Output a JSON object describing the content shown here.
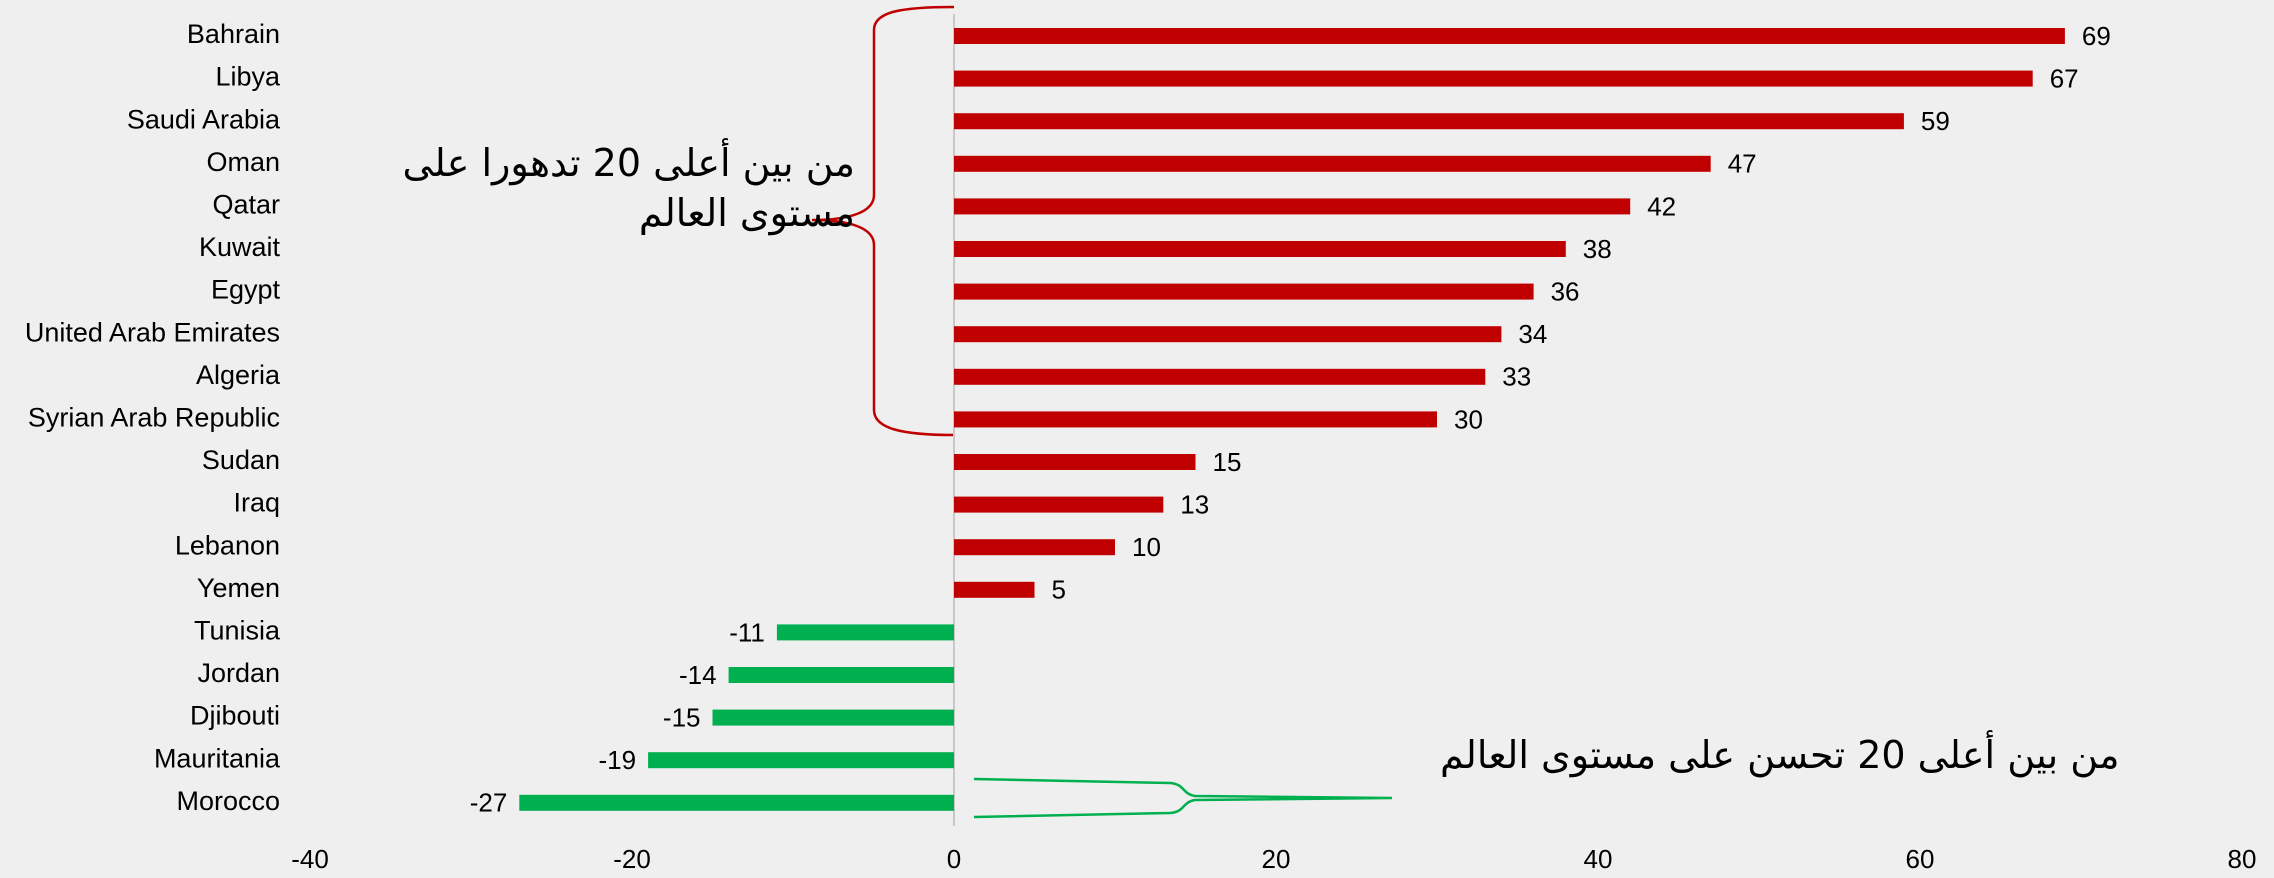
{
  "chart_data": {
    "type": "bar",
    "orientation": "horizontal",
    "categories": [
      "Bahrain",
      "Libya",
      "Saudi Arabia",
      "Oman",
      "Qatar",
      "Kuwait",
      "Egypt",
      "United Arab Emirates",
      "Algeria",
      "Syrian Arab Republic",
      "Sudan",
      "Iraq",
      "Lebanon",
      "Yemen",
      "Tunisia",
      "Jordan",
      "Djibouti",
      "Mauritania",
      "Morocco"
    ],
    "values": [
      69,
      67,
      59,
      47,
      42,
      38,
      36,
      34,
      33,
      30,
      15,
      13,
      10,
      5,
      -11,
      -14,
      -15,
      -19,
      -27
    ],
    "color_positive": "#c00000",
    "color_negative": "#00b050",
    "xlim": [
      -40,
      80
    ],
    "xticks": [
      -40,
      -20,
      0,
      20,
      40,
      60,
      80
    ],
    "grid": false,
    "annotations": [
      "من بين أعلى 20 تدهورا على مستوى العالم",
      "من بين أعلى 20 تحسن على مستوى العالم"
    ]
  }
}
